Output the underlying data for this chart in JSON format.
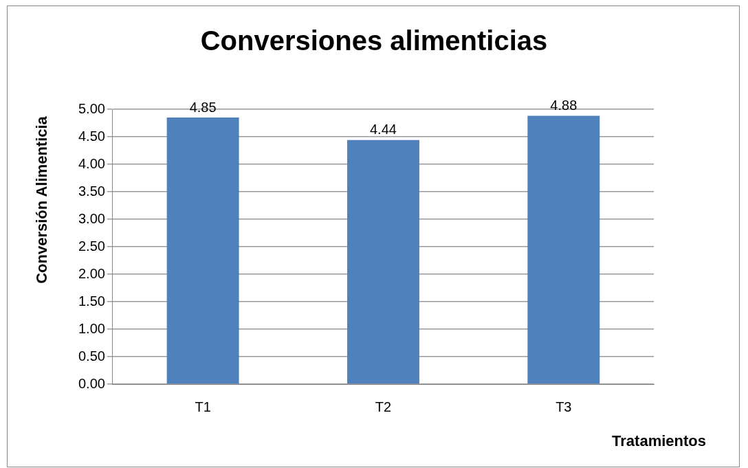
{
  "chart_data": {
    "type": "bar",
    "title": "Conversiones alimenticias",
    "xlabel": "Tratamientos",
    "ylabel": "Conversión Alimenticia",
    "categories": [
      "T1",
      "T2",
      "T3"
    ],
    "values": [
      4.85,
      4.44,
      4.88
    ],
    "color": "#4f81bd",
    "ylim": [
      0,
      5
    ],
    "yticks": [
      {
        "value": 0,
        "label": "0.00"
      },
      {
        "value": 0.5,
        "label": "0.50"
      },
      {
        "value": 1,
        "label": "1.00"
      },
      {
        "value": 1.5,
        "label": "1.50"
      },
      {
        "value": 2,
        "label": "2.00"
      },
      {
        "value": 2.5,
        "label": "2.50"
      },
      {
        "value": 3,
        "label": "3.00"
      },
      {
        "value": 3.5,
        "label": "3.50"
      },
      {
        "value": 4,
        "label": "4.00"
      },
      {
        "value": 4.5,
        "label": "4.50"
      },
      {
        "value": 5,
        "label": "5.00"
      }
    ],
    "grid": "y",
    "legend": false,
    "data_labels": true
  }
}
